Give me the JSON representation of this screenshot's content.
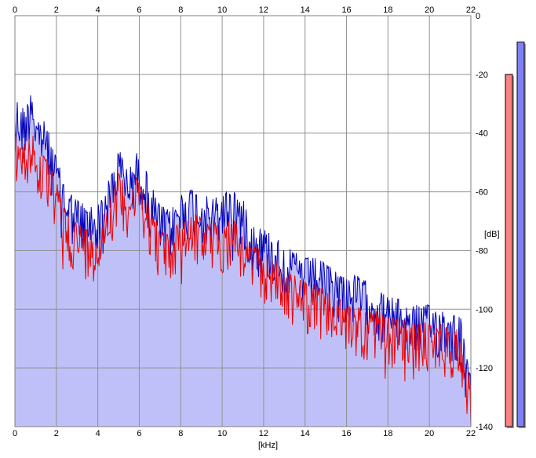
{
  "chart_data": {
    "type": "area",
    "title": "",
    "xlabel": "[kHz]",
    "ylabel": "[dB]",
    "xlim": [
      0,
      22
    ],
    "ylim": [
      -140,
      0
    ],
    "x_ticks": [
      "0",
      "2",
      "4",
      "6",
      "8",
      "10",
      "12",
      "14",
      "16",
      "18",
      "20",
      "22"
    ],
    "y_ticks": [
      "0",
      "-20",
      "-40",
      "-60",
      "-80",
      "-100",
      "-120",
      "-140"
    ],
    "grid": true,
    "series": [
      {
        "color": "#0000bb",
        "envelope_x": [
          0,
          0.3,
          0.6,
          0.8,
          1.0,
          1.5,
          2.0,
          2.5,
          3.0,
          3.5,
          4.0,
          4.5,
          5.0,
          5.5,
          6.0,
          6.5,
          7.0,
          7.5,
          8.0,
          8.5,
          9.0,
          9.5,
          10.0,
          10.5,
          11.0,
          11.5,
          12.0,
          12.5,
          13.0,
          13.5,
          14.0,
          14.5,
          15.0,
          15.5,
          16.0,
          16.5,
          17.0,
          17.5,
          18.0,
          18.5,
          19.0,
          19.5,
          20.0,
          20.5,
          21.0,
          21.5,
          21.8,
          22.0
        ],
        "envelope_db": [
          -28,
          -33,
          -31,
          -22,
          -35,
          -38,
          -50,
          -60,
          -64,
          -66,
          -66,
          -58,
          -47,
          -52,
          -47,
          -58,
          -66,
          -68,
          -62,
          -60,
          -62,
          -64,
          -62,
          -60,
          -64,
          -72,
          -74,
          -76,
          -80,
          -82,
          -84,
          -84,
          -86,
          -88,
          -90,
          -90,
          -92,
          -95,
          -97,
          -98,
          -100,
          -100,
          -100,
          -101,
          -102,
          -104,
          -118,
          -125
        ]
      },
      {
        "color": "#ee0000",
        "envelope_x": [
          0,
          0.3,
          0.6,
          0.8,
          1.0,
          1.5,
          2.0,
          2.5,
          3.0,
          3.5,
          4.0,
          4.5,
          5.0,
          5.5,
          6.0,
          6.5,
          7.0,
          7.5,
          8.0,
          8.5,
          9.0,
          9.5,
          10.0,
          10.5,
          11.0,
          11.5,
          12.0,
          12.5,
          13.0,
          13.5,
          14.0,
          14.5,
          15.0,
          15.5,
          16.0,
          16.5,
          17.0,
          17.5,
          18.0,
          18.5,
          19.0,
          19.5,
          20.0,
          20.5,
          21.0,
          21.5,
          21.8,
          22.0
        ],
        "envelope_db": [
          -40,
          -46,
          -44,
          -38,
          -47,
          -50,
          -58,
          -68,
          -72,
          -74,
          -74,
          -64,
          -55,
          -60,
          -55,
          -66,
          -74,
          -76,
          -70,
          -68,
          -70,
          -72,
          -72,
          -70,
          -75,
          -80,
          -82,
          -84,
          -88,
          -90,
          -92,
          -93,
          -95,
          -97,
          -100,
          -100,
          -102,
          -102,
          -104,
          -104,
          -106,
          -106,
          -106,
          -106,
          -108,
          -108,
          -121,
          -126
        ]
      }
    ],
    "fill_color": "#c0c0f8",
    "level_meters": [
      {
        "color": "#ff8080",
        "level_db": -20
      },
      {
        "color": "#8080ff",
        "level_db": -9
      }
    ]
  }
}
